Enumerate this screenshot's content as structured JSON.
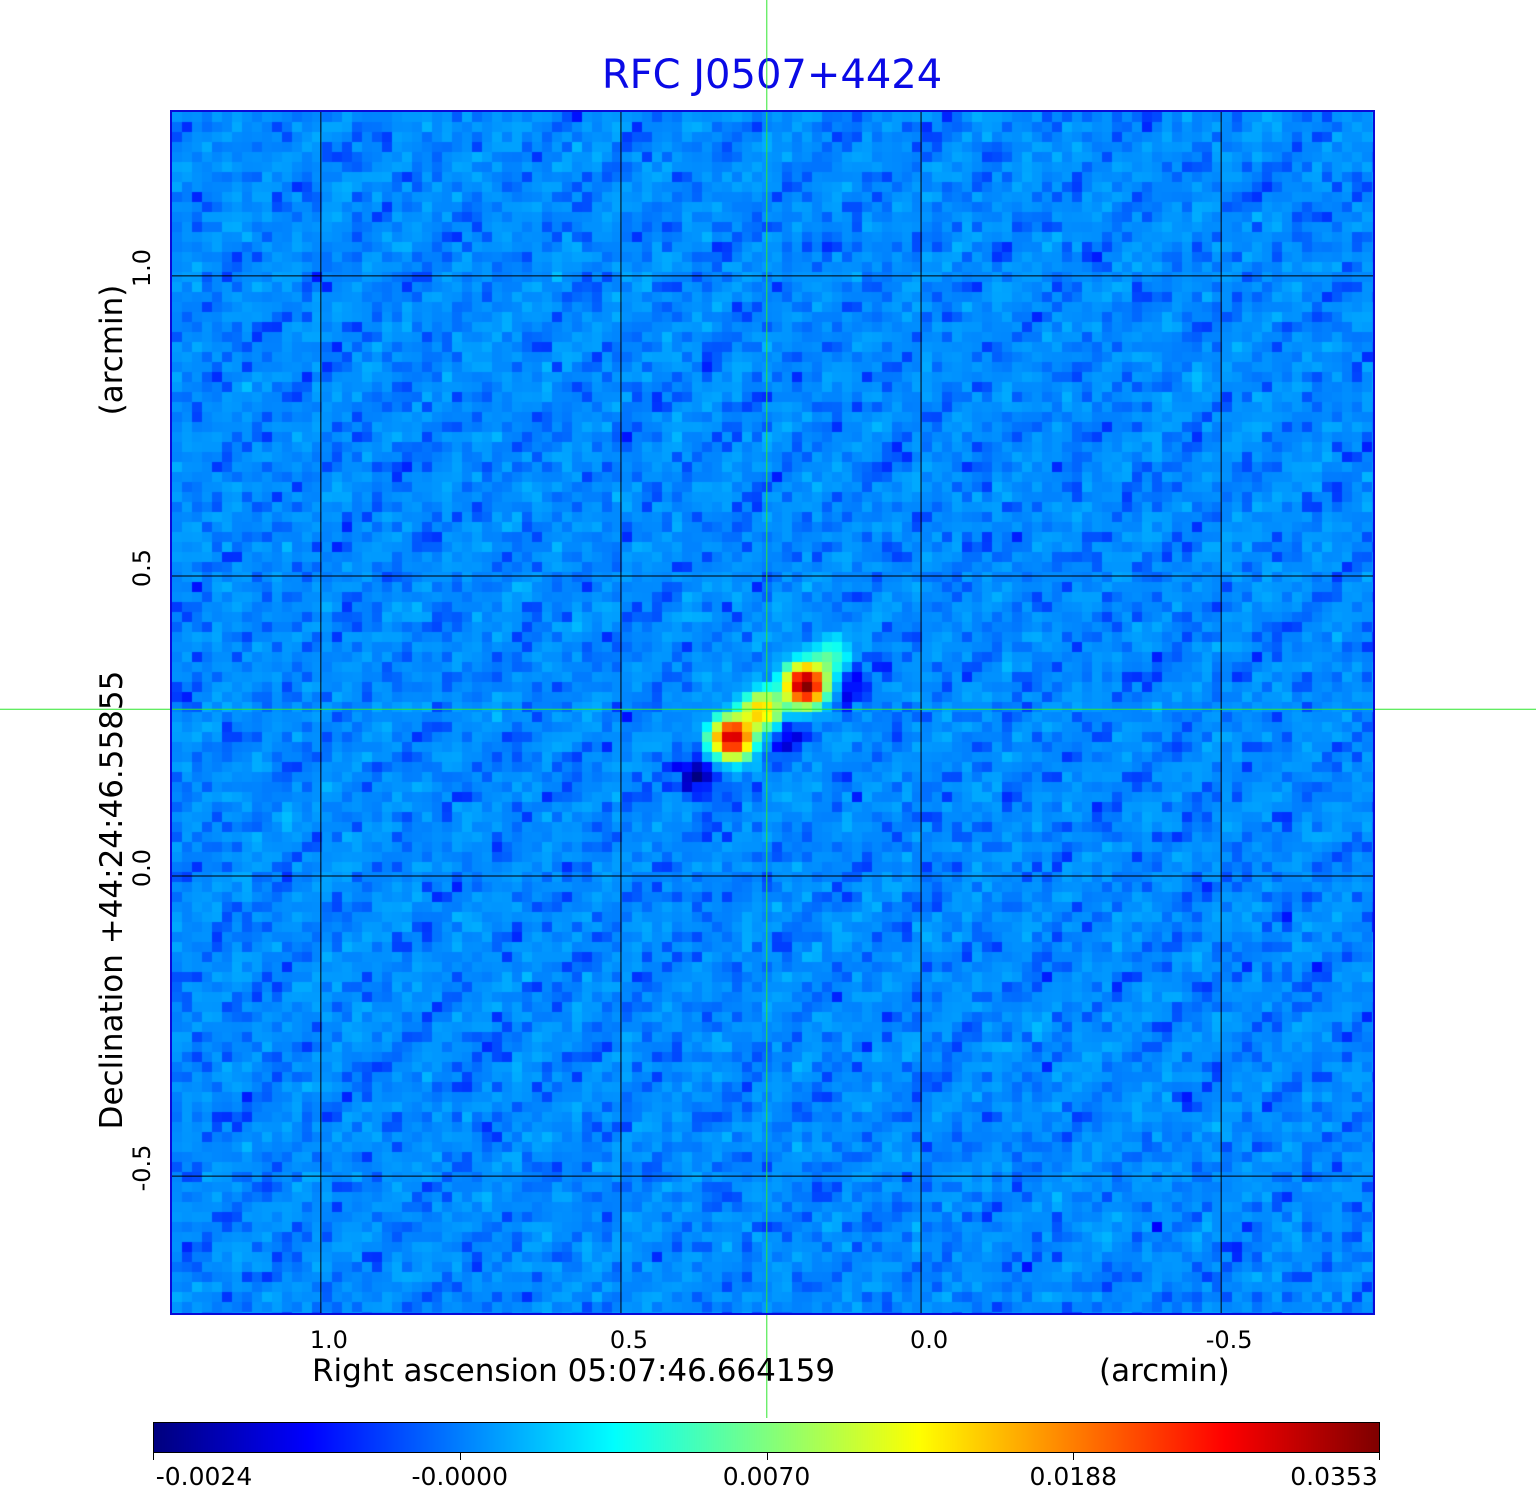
{
  "chart_data": {
    "type": "heatmap",
    "title": "RFC J0507+4424",
    "xlabel": "Right ascension  05:07:46.664159",
    "xunit": "(arcmin)",
    "ylabel": "Declination  +44:24:46.55855",
    "yunit": "(arcmin)",
    "xlim": [
      1.248,
      -0.753
    ],
    "ylim": [
      -0.728,
      1.273
    ],
    "xticks": [
      {
        "value": 1.0,
        "label": "1.0"
      },
      {
        "value": 0.5,
        "label": "0.5"
      },
      {
        "value": 0.0,
        "label": "0.0"
      },
      {
        "value": -0.5,
        "label": "-0.5"
      }
    ],
    "yticks": [
      {
        "value": 1.0,
        "label": "1.0"
      },
      {
        "value": 0.5,
        "label": "0.5"
      },
      {
        "value": 0.0,
        "label": "0.0"
      },
      {
        "value": -0.5,
        "label": "-0.5"
      }
    ],
    "grid": true,
    "crosshair": {
      "x": 0.257,
      "y": 0.278
    },
    "colormap": "jet",
    "colorbar": {
      "placement": "bottom",
      "ticks": [
        -0.0024,
        0.0,
        0.007,
        0.0188,
        0.0353
      ],
      "labels": [
        "-0.0024",
        "-0.0000",
        "0.0070",
        "0.0188",
        "0.0353"
      ]
    },
    "pixel_size_arcmin": 0.0167,
    "background_level": 0.0003,
    "noise_rms": 0.0005,
    "components": [
      {
        "x": 0.193,
        "y": 0.318,
        "flux": 0.0353
      },
      {
        "x": 0.315,
        "y": 0.23,
        "flux": 0.031
      },
      {
        "x": 0.265,
        "y": 0.275,
        "flux": 0.016
      },
      {
        "x": 0.15,
        "y": 0.365,
        "flux": 0.005
      },
      {
        "x": 0.368,
        "y": 0.168,
        "flux": -0.0024
      },
      {
        "x": 0.235,
        "y": 0.238,
        "flux": -0.0024
      },
      {
        "x": 0.118,
        "y": 0.315,
        "flux": -0.0018
      }
    ]
  }
}
